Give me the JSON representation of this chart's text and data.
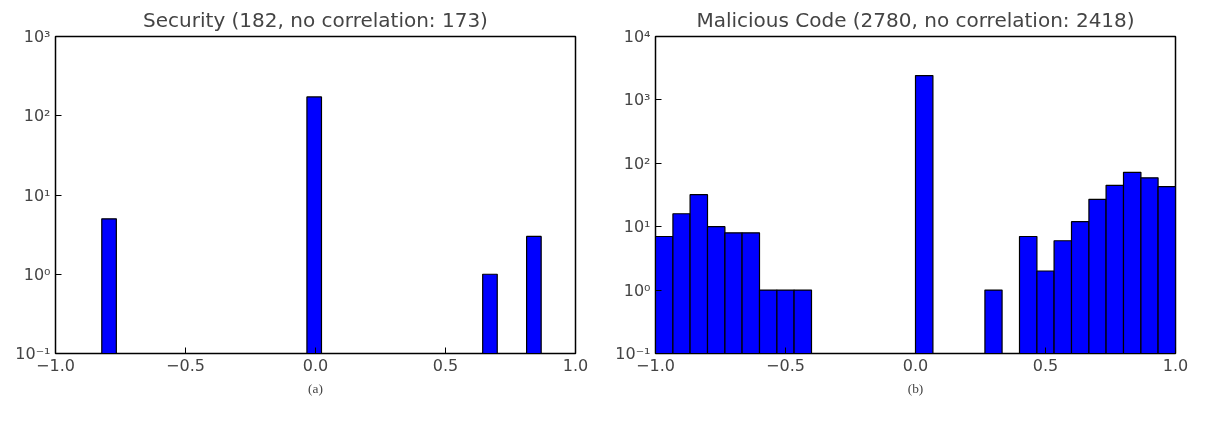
{
  "chart_data": [
    {
      "type": "histogram",
      "title": "Security (182, no correlation: 173)",
      "bins": [
        -0.822,
        -0.766,
        -0.709,
        -0.653,
        -0.597,
        -0.54,
        -0.484,
        -0.428,
        -0.371,
        -0.315,
        -0.259,
        -0.202,
        -0.146,
        -0.09,
        -0.033,
        0.023,
        0.079,
        0.136,
        0.192,
        0.248,
        0.305,
        0.361,
        0.417,
        0.474,
        0.53,
        0.586,
        0.643,
        0.699,
        0.755,
        0.812,
        0.868
      ],
      "values": [
        5,
        null,
        null,
        null,
        null,
        null,
        null,
        null,
        null,
        null,
        null,
        null,
        null,
        null,
        173,
        null,
        null,
        null,
        null,
        null,
        null,
        null,
        null,
        null,
        null,
        null,
        1,
        null,
        null,
        3
      ],
      "color": "#0000ff",
      "log": "y",
      "grid": false,
      "xlim": [
        -1,
        1
      ],
      "xticks": [
        {
          "value": -1,
          "label": "−1.0"
        },
        {
          "value": -0.5,
          "label": "−0.5"
        },
        {
          "value": 0,
          "label": "0.0"
        },
        {
          "value": 0.5,
          "label": "0.5"
        },
        {
          "value": 1,
          "label": "1.0"
        }
      ],
      "ylim": [
        0.1,
        1000
      ],
      "yticks": [
        {
          "value": 0.1,
          "label": "10⁻¹"
        },
        {
          "value": 1,
          "label": "10⁰"
        },
        {
          "value": 10,
          "label": "10¹"
        },
        {
          "value": 100,
          "label": "10²"
        },
        {
          "value": 1000,
          "label": "10³"
        }
      ],
      "annotations": [
        "(a)"
      ]
    },
    {
      "type": "histogram",
      "title": "Malicious Code (2780, no correlation: 2418)",
      "bins": [
        -1,
        -0.933,
        -0.867,
        -0.8,
        -0.733,
        -0.667,
        -0.6,
        -0.533,
        -0.467,
        -0.4,
        -0.333,
        -0.267,
        -0.2,
        -0.133,
        -0.067,
        0,
        0.067,
        0.133,
        0.2,
        0.267,
        0.333,
        0.4,
        0.467,
        0.533,
        0.6,
        0.667,
        0.733,
        0.8,
        0.867,
        0.933,
        1
      ],
      "values": [
        7,
        16,
        32,
        10,
        8,
        8,
        1,
        1,
        1,
        null,
        null,
        null,
        null,
        null,
        null,
        2418,
        null,
        null,
        null,
        1,
        null,
        7,
        2,
        6,
        12,
        27,
        45,
        72,
        59,
        43
      ],
      "color": "#0000ff",
      "log": "y",
      "grid": false,
      "xlim": [
        -1,
        1
      ],
      "xticks": [
        {
          "value": -1,
          "label": "−1.0"
        },
        {
          "value": -0.5,
          "label": "−0.5"
        },
        {
          "value": 0,
          "label": "0.0"
        },
        {
          "value": 0.5,
          "label": "0.5"
        },
        {
          "value": 1,
          "label": "1.0"
        }
      ],
      "ylim": [
        0.1,
        10000
      ],
      "yticks": [
        {
          "value": 0.1,
          "label": "10⁻¹"
        },
        {
          "value": 1,
          "label": "10⁰"
        },
        {
          "value": 10,
          "label": "10¹"
        },
        {
          "value": 100,
          "label": "10²"
        },
        {
          "value": 1000,
          "label": "10³"
        },
        {
          "value": 10000,
          "label": "10⁴"
        }
      ],
      "annotations": [
        "(b)"
      ]
    }
  ]
}
